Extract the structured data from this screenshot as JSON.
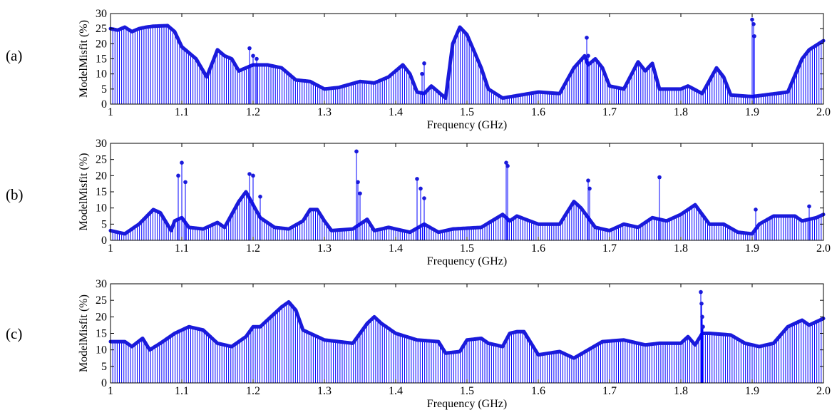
{
  "figure": {
    "panel_labels": [
      "(a)",
      "(b)",
      "(c)"
    ],
    "xlabel": "Frequency (GHz)",
    "ylabel": "ModelMisfit (%)",
    "xticks": [
      "1",
      "1.1",
      "1.2",
      "1.3",
      "1.4",
      "1.5",
      "1.6",
      "1.7",
      "1.8",
      "1.9",
      "2.0"
    ],
    "yticks": [
      "0",
      "5",
      "10",
      "15",
      "20",
      "25",
      "30"
    ],
    "stem_color": "#0000ff",
    "marker_color": "#1a1adb"
  },
  "chart_data": [
    {
      "type": "stem",
      "panel": "(a)",
      "xlabel": "Frequency (GHz)",
      "ylabel": "ModelMisfit (%)",
      "xlim": [
        1,
        2
      ],
      "ylim": [
        0,
        30
      ],
      "grid": false,
      "curve": [
        [
          1.0,
          25
        ],
        [
          1.01,
          24.5
        ],
        [
          1.02,
          25.5
        ],
        [
          1.03,
          24
        ],
        [
          1.04,
          25
        ],
        [
          1.05,
          25.5
        ],
        [
          1.06,
          25.8
        ],
        [
          1.08,
          26
        ],
        [
          1.09,
          24
        ],
        [
          1.1,
          19
        ],
        [
          1.12,
          15
        ],
        [
          1.135,
          9
        ],
        [
          1.15,
          18
        ],
        [
          1.16,
          16
        ],
        [
          1.17,
          15
        ],
        [
          1.18,
          11
        ],
        [
          1.2,
          13
        ],
        [
          1.22,
          13
        ],
        [
          1.24,
          12
        ],
        [
          1.26,
          8
        ],
        [
          1.28,
          7.5
        ],
        [
          1.3,
          5
        ],
        [
          1.32,
          5.5
        ],
        [
          1.35,
          7.5
        ],
        [
          1.37,
          7
        ],
        [
          1.39,
          9
        ],
        [
          1.41,
          13
        ],
        [
          1.42,
          10
        ],
        [
          1.43,
          4
        ],
        [
          1.44,
          3.5
        ],
        [
          1.45,
          6
        ],
        [
          1.46,
          4
        ],
        [
          1.47,
          2
        ],
        [
          1.48,
          20
        ],
        [
          1.49,
          25.5
        ],
        [
          1.5,
          23
        ],
        [
          1.52,
          12
        ],
        [
          1.53,
          5
        ],
        [
          1.55,
          2
        ],
        [
          1.6,
          4
        ],
        [
          1.63,
          3.5
        ],
        [
          1.65,
          12
        ],
        [
          1.665,
          16
        ],
        [
          1.67,
          13
        ],
        [
          1.68,
          15
        ],
        [
          1.69,
          12
        ],
        [
          1.7,
          6
        ],
        [
          1.72,
          5
        ],
        [
          1.74,
          14
        ],
        [
          1.75,
          11
        ],
        [
          1.76,
          13.5
        ],
        [
          1.77,
          5
        ],
        [
          1.8,
          5
        ],
        [
          1.81,
          6
        ],
        [
          1.83,
          3.5
        ],
        [
          1.85,
          12
        ],
        [
          1.86,
          9
        ],
        [
          1.87,
          3
        ],
        [
          1.9,
          2.5
        ],
        [
          1.95,
          4
        ],
        [
          1.97,
          15
        ],
        [
          1.98,
          18
        ],
        [
          2.0,
          21
        ]
      ],
      "spikes": [
        [
          1.195,
          18.5
        ],
        [
          1.2,
          16
        ],
        [
          1.205,
          15
        ],
        [
          1.44,
          13.5
        ],
        [
          1.437,
          10
        ],
        [
          1.668,
          22
        ],
        [
          1.67,
          16
        ],
        [
          1.9,
          28
        ],
        [
          1.902,
          26.5
        ],
        [
          1.903,
          22.5
        ]
      ]
    },
    {
      "type": "stem",
      "panel": "(b)",
      "xlabel": "Frequency (GHz)",
      "ylabel": "ModelMisfit (%)",
      "xlim": [
        1,
        2
      ],
      "ylim": [
        0,
        30
      ],
      "grid": false,
      "curve": [
        [
          1.0,
          3
        ],
        [
          1.02,
          2
        ],
        [
          1.04,
          5
        ],
        [
          1.06,
          9.5
        ],
        [
          1.07,
          8.5
        ],
        [
          1.085,
          3
        ],
        [
          1.09,
          6
        ],
        [
          1.1,
          7
        ],
        [
          1.11,
          4
        ],
        [
          1.13,
          3.5
        ],
        [
          1.15,
          5.5
        ],
        [
          1.16,
          4
        ],
        [
          1.18,
          12
        ],
        [
          1.19,
          15
        ],
        [
          1.21,
          7
        ],
        [
          1.23,
          4
        ],
        [
          1.25,
          3.5
        ],
        [
          1.27,
          6
        ],
        [
          1.28,
          9.5
        ],
        [
          1.29,
          9.5
        ],
        [
          1.3,
          6
        ],
        [
          1.31,
          3
        ],
        [
          1.34,
          3.5
        ],
        [
          1.36,
          6.5
        ],
        [
          1.37,
          3
        ],
        [
          1.39,
          4
        ],
        [
          1.42,
          2.5
        ],
        [
          1.44,
          5
        ],
        [
          1.46,
          2.5
        ],
        [
          1.48,
          3.5
        ],
        [
          1.52,
          4
        ],
        [
          1.55,
          8
        ],
        [
          1.56,
          6
        ],
        [
          1.57,
          7.5
        ],
        [
          1.6,
          5
        ],
        [
          1.63,
          5
        ],
        [
          1.65,
          12
        ],
        [
          1.66,
          10
        ],
        [
          1.68,
          4
        ],
        [
          1.7,
          3
        ],
        [
          1.72,
          5
        ],
        [
          1.74,
          4
        ],
        [
          1.76,
          7
        ],
        [
          1.78,
          6
        ],
        [
          1.8,
          8
        ],
        [
          1.82,
          11
        ],
        [
          1.84,
          5
        ],
        [
          1.86,
          5
        ],
        [
          1.88,
          2.5
        ],
        [
          1.9,
          2
        ],
        [
          1.91,
          5
        ],
        [
          1.93,
          7.5
        ],
        [
          1.96,
          7.5
        ],
        [
          1.97,
          6
        ],
        [
          1.99,
          7
        ],
        [
          2.0,
          8
        ]
      ],
      "spikes": [
        [
          1.095,
          20
        ],
        [
          1.1,
          24
        ],
        [
          1.105,
          18
        ],
        [
          1.195,
          20.5
        ],
        [
          1.2,
          20
        ],
        [
          1.21,
          13.5
        ],
        [
          1.345,
          27.5
        ],
        [
          1.347,
          18
        ],
        [
          1.35,
          14.5
        ],
        [
          1.43,
          19
        ],
        [
          1.435,
          16
        ],
        [
          1.44,
          13
        ],
        [
          1.555,
          24
        ],
        [
          1.557,
          23
        ],
        [
          1.67,
          18.5
        ],
        [
          1.672,
          16
        ],
        [
          1.77,
          19.5
        ],
        [
          1.905,
          9.5
        ],
        [
          1.98,
          10.5
        ]
      ]
    },
    {
      "type": "stem",
      "panel": "(c)",
      "xlabel": "Frequency (GHz)",
      "ylabel": "ModelMisfit (%)",
      "xlim": [
        1,
        2
      ],
      "ylim": [
        0,
        30
      ],
      "grid": false,
      "curve": [
        [
          1.0,
          12.5
        ],
        [
          1.02,
          12.5
        ],
        [
          1.03,
          11
        ],
        [
          1.045,
          13.5
        ],
        [
          1.055,
          10
        ],
        [
          1.07,
          12
        ],
        [
          1.09,
          15
        ],
        [
          1.11,
          17
        ],
        [
          1.13,
          16
        ],
        [
          1.15,
          12
        ],
        [
          1.17,
          11
        ],
        [
          1.19,
          14
        ],
        [
          1.2,
          17
        ],
        [
          1.21,
          17
        ],
        [
          1.22,
          19
        ],
        [
          1.24,
          23
        ],
        [
          1.25,
          24.5
        ],
        [
          1.26,
          22
        ],
        [
          1.27,
          16
        ],
        [
          1.3,
          13
        ],
        [
          1.32,
          12.5
        ],
        [
          1.34,
          12
        ],
        [
          1.36,
          18
        ],
        [
          1.37,
          20
        ],
        [
          1.38,
          18
        ],
        [
          1.4,
          15
        ],
        [
          1.43,
          13
        ],
        [
          1.46,
          12.5
        ],
        [
          1.47,
          9
        ],
        [
          1.49,
          9.5
        ],
        [
          1.5,
          13
        ],
        [
          1.52,
          13.5
        ],
        [
          1.53,
          12
        ],
        [
          1.55,
          11
        ],
        [
          1.56,
          15
        ],
        [
          1.57,
          15.5
        ],
        [
          1.58,
          15.5
        ],
        [
          1.59,
          12
        ],
        [
          1.6,
          8.5
        ],
        [
          1.63,
          9.5
        ],
        [
          1.65,
          7.5
        ],
        [
          1.67,
          10
        ],
        [
          1.69,
          12.5
        ],
        [
          1.72,
          13
        ],
        [
          1.75,
          11.5
        ],
        [
          1.77,
          12
        ],
        [
          1.8,
          12
        ],
        [
          1.81,
          14
        ],
        [
          1.82,
          11.5
        ],
        [
          1.83,
          15
        ],
        [
          1.84,
          15
        ],
        [
          1.87,
          14.5
        ],
        [
          1.89,
          12
        ],
        [
          1.91,
          11
        ],
        [
          1.93,
          12
        ],
        [
          1.95,
          17
        ],
        [
          1.97,
          19
        ],
        [
          1.98,
          17.5
        ],
        [
          2.0,
          19.5
        ]
      ],
      "spikes": [
        [
          1.828,
          27.5
        ],
        [
          1.829,
          24
        ],
        [
          1.83,
          20
        ],
        [
          1.831,
          17
        ]
      ]
    }
  ]
}
